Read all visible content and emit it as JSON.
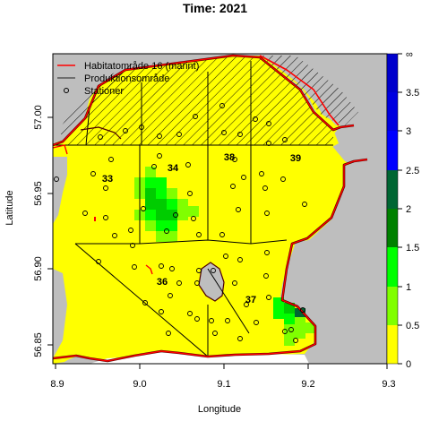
{
  "title": "Time: 2021",
  "xlabel": "Longitude",
  "ylabel": "Latitude",
  "x_ticks": [
    "8.9",
    "9.0",
    "9.1",
    "9.2",
    "9.3"
  ],
  "y_ticks": [
    "56.85",
    "56.90",
    "56.95",
    "57.00"
  ],
  "legend": {
    "items": [
      {
        "label": "Habitatområde 16 (marint)",
        "symbol": "line",
        "color": "#ff0000"
      },
      {
        "label": "Produktionsområde",
        "symbol": "line",
        "color": "#555555"
      },
      {
        "label": "Stationer",
        "symbol": "circle",
        "color": "#000000"
      }
    ]
  },
  "zones": [
    "33",
    "34",
    "36",
    "37",
    "38",
    "39"
  ],
  "colorbar": {
    "ticks": [
      "0",
      "0.5",
      "1",
      "1.5",
      "2",
      "2.5",
      "3",
      "3.5",
      "∞"
    ],
    "colors": [
      "#ffff00",
      "#80ff00",
      "#00ff00",
      "#00cc00",
      "#008000",
      "#006633",
      "#0000ff",
      "#0000cc"
    ]
  },
  "colors": {
    "land": "#bebebe",
    "sea_low": "#ffff00",
    "boundary_red": "#ff0000",
    "boundary_dark": "#4d0000"
  }
}
